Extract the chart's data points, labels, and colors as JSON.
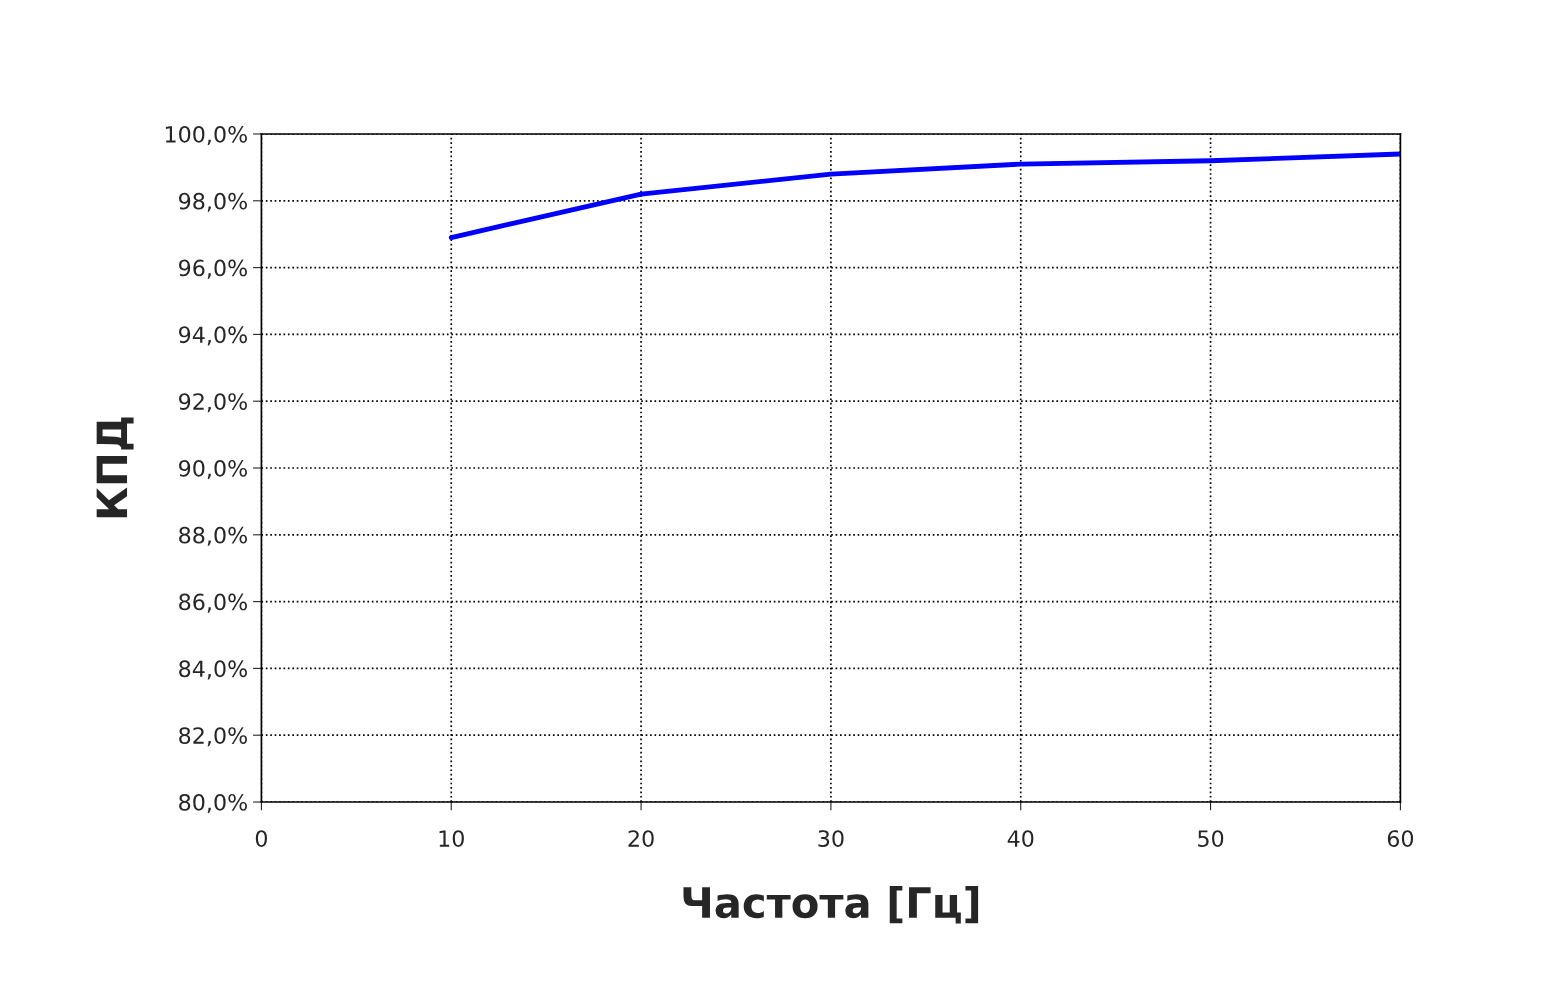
{
  "chart_data": {
    "type": "line",
    "xlabel": "Частота [Гц]",
    "ylabel": "КПД",
    "x": [
      10,
      20,
      30,
      40,
      50,
      60
    ],
    "series": [
      {
        "color": "#0000ff",
        "values": [
          96.9,
          98.2,
          98.8,
          99.1,
          99.2,
          99.4
        ]
      }
    ],
    "xlim": [
      0,
      60
    ],
    "xticks": [
      0,
      10,
      20,
      30,
      40,
      50,
      60
    ],
    "ylim": [
      80,
      100
    ],
    "yticks": [
      {
        "value": 80,
        "label": "80,0%"
      },
      {
        "value": 82,
        "label": "82,0%"
      },
      {
        "value": 84,
        "label": "84,0%"
      },
      {
        "value": 86,
        "label": "86,0%"
      },
      {
        "value": 88,
        "label": "88,0%"
      },
      {
        "value": 90,
        "label": "90,0%"
      },
      {
        "value": 92,
        "label": "92,0%"
      },
      {
        "value": 94,
        "label": "94,0%"
      },
      {
        "value": 96,
        "label": "96,0%"
      },
      {
        "value": 98,
        "label": "98,0%"
      },
      {
        "value": 100,
        "label": "100,0%"
      }
    ],
    "grid": true,
    "marker": "none",
    "line_style": "solid"
  }
}
